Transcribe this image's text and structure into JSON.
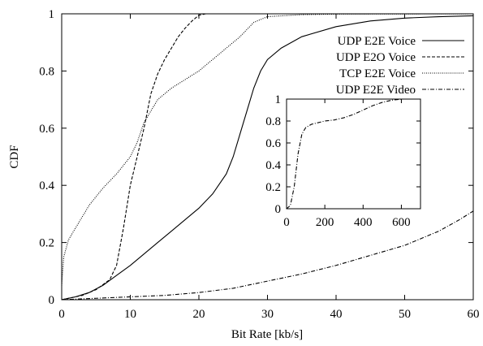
{
  "chart_data": [
    {
      "type": "line",
      "xlabel": "Bit Rate [kb/s]",
      "ylabel": "CDF",
      "xlim": [
        0,
        60
      ],
      "ylim": [
        0,
        1
      ],
      "xticks": [
        0,
        10,
        20,
        30,
        40,
        50,
        60
      ],
      "yticks": [
        0,
        0.2,
        0.4,
        0.6,
        0.8,
        1
      ],
      "xtick_labels": [
        "0",
        "10",
        "20",
        "30",
        "40",
        "50",
        "60"
      ],
      "ytick_labels": [
        "0",
        "0.2",
        "0.4",
        "0.6",
        "0.8",
        "1"
      ],
      "grid": false,
      "legend_position": "top-right",
      "series": [
        {
          "name": "UDP E2E Voice",
          "style": "solid",
          "points": [
            [
              0,
              0
            ],
            [
              2,
              0.01
            ],
            [
              4,
              0.025
            ],
            [
              6,
              0.05
            ],
            [
              8,
              0.085
            ],
            [
              10,
              0.12
            ],
            [
              12,
              0.16
            ],
            [
              14,
              0.2
            ],
            [
              16,
              0.24
            ],
            [
              18,
              0.28
            ],
            [
              20,
              0.32
            ],
            [
              22,
              0.37
            ],
            [
              24,
              0.44
            ],
            [
              25,
              0.5
            ],
            [
              26,
              0.58
            ],
            [
              27,
              0.66
            ],
            [
              28,
              0.74
            ],
            [
              29,
              0.8
            ],
            [
              30,
              0.84
            ],
            [
              32,
              0.88
            ],
            [
              35,
              0.92
            ],
            [
              40,
              0.955
            ],
            [
              45,
              0.975
            ],
            [
              50,
              0.985
            ],
            [
              55,
              0.99
            ],
            [
              60,
              0.993
            ]
          ]
        },
        {
          "name": "UDP E2O Voice",
          "style": "dashed",
          "points": [
            [
              0,
              0
            ],
            [
              3,
              0.015
            ],
            [
              5,
              0.035
            ],
            [
              7,
              0.07
            ],
            [
              8,
              0.12
            ],
            [
              9,
              0.25
            ],
            [
              10,
              0.4
            ],
            [
              11,
              0.5
            ],
            [
              12,
              0.6
            ],
            [
              13,
              0.72
            ],
            [
              14,
              0.79
            ],
            [
              15,
              0.84
            ],
            [
              16,
              0.88
            ],
            [
              17,
              0.92
            ],
            [
              18,
              0.95
            ],
            [
              19,
              0.975
            ],
            [
              20,
              0.995
            ],
            [
              21,
              1
            ],
            [
              60,
              1
            ]
          ]
        },
        {
          "name": "TCP E2E Voice",
          "style": "dotted",
          "points": [
            [
              0,
              0.05
            ],
            [
              0.3,
              0.15
            ],
            [
              1,
              0.21
            ],
            [
              2,
              0.25
            ],
            [
              4,
              0.33
            ],
            [
              6,
              0.39
            ],
            [
              8,
              0.44
            ],
            [
              10,
              0.5
            ],
            [
              11,
              0.55
            ],
            [
              12,
              0.62
            ],
            [
              13,
              0.66
            ],
            [
              14,
              0.7
            ],
            [
              16,
              0.74
            ],
            [
              18,
              0.77
            ],
            [
              20,
              0.8
            ],
            [
              22,
              0.84
            ],
            [
              24,
              0.88
            ],
            [
              26,
              0.92
            ],
            [
              28,
              0.97
            ],
            [
              30,
              0.99
            ],
            [
              35,
              0.997
            ],
            [
              40,
              0.999
            ],
            [
              60,
              1
            ]
          ]
        },
        {
          "name": "UDP E2E Video",
          "style": "dashdot",
          "points": [
            [
              0,
              0
            ],
            [
              5,
              0.005
            ],
            [
              10,
              0.01
            ],
            [
              15,
              0.015
            ],
            [
              20,
              0.025
            ],
            [
              25,
              0.04
            ],
            [
              30,
              0.065
            ],
            [
              35,
              0.09
            ],
            [
              40,
              0.12
            ],
            [
              45,
              0.155
            ],
            [
              50,
              0.19
            ],
            [
              55,
              0.24
            ],
            [
              58,
              0.28
            ],
            [
              60,
              0.31
            ]
          ]
        }
      ]
    },
    {
      "type": "line",
      "role": "inset",
      "xlim": [
        0,
        700
      ],
      "ylim": [
        0,
        1
      ],
      "xticks": [
        0,
        200,
        400,
        600
      ],
      "yticks": [
        0,
        0.2,
        0.4,
        0.6,
        0.8,
        1
      ],
      "xtick_labels": [
        "0",
        "200",
        "400",
        "600"
      ],
      "ytick_labels": [
        "0",
        "0.2",
        "0.4",
        "0.6",
        "0.8",
        "1"
      ],
      "series": [
        {
          "style": "dashdot",
          "points": [
            [
              0,
              0
            ],
            [
              20,
              0.03
            ],
            [
              40,
              0.2
            ],
            [
              60,
              0.5
            ],
            [
              80,
              0.68
            ],
            [
              100,
              0.74
            ],
            [
              130,
              0.77
            ],
            [
              200,
              0.8
            ],
            [
              250,
              0.81
            ],
            [
              300,
              0.83
            ],
            [
              350,
              0.86
            ],
            [
              400,
              0.9
            ],
            [
              450,
              0.94
            ],
            [
              500,
              0.97
            ],
            [
              550,
              0.99
            ],
            [
              600,
              1
            ],
            [
              700,
              1
            ]
          ]
        }
      ]
    }
  ]
}
